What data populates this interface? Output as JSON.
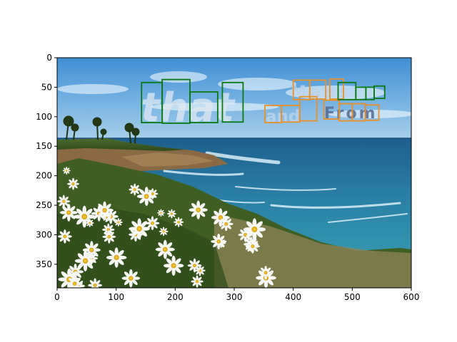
{
  "figure": {
    "x_axis": {
      "min": 0,
      "max": 600,
      "ticks": [
        0,
        100,
        200,
        300,
        400,
        500,
        600
      ]
    },
    "y_axis": {
      "min": 0,
      "max": 390,
      "inverted": true,
      "ticks": [
        0,
        50,
        100,
        150,
        200,
        250,
        300,
        350
      ]
    },
    "image": {
      "scene": "coastal photo: white daisies on a cliff, rocky headland, blue ocean, sky with clouds",
      "overlay_words": [
        "that",
        "and",
        "Mass",
        "From"
      ]
    },
    "boxes": [
      {
        "word": "that",
        "letter": "t",
        "color": "#0a7a10",
        "x0": 143,
        "y0": 42,
        "x1": 178,
        "y1": 110
      },
      {
        "word": "that",
        "letter": "h",
        "color": "#0a7a10",
        "x0": 178,
        "y0": 37,
        "x1": 225,
        "y1": 111
      },
      {
        "word": "that",
        "letter": "a",
        "color": "#0a7a10",
        "x0": 225,
        "y0": 58,
        "x1": 272,
        "y1": 110
      },
      {
        "word": "that",
        "letter": "t",
        "color": "#0a7a10",
        "x0": 280,
        "y0": 42,
        "x1": 315,
        "y1": 109
      },
      {
        "word": "and",
        "letter": "a",
        "color": "#e8902a",
        "x0": 352,
        "y0": 81,
        "x1": 380,
        "y1": 110
      },
      {
        "word": "and",
        "letter": "n",
        "color": "#e8902a",
        "x0": 380,
        "y0": 81,
        "x1": 411,
        "y1": 109
      },
      {
        "word": "and",
        "letter": "d",
        "color": "#e8902a",
        "x0": 411,
        "y0": 66,
        "x1": 440,
        "y1": 107
      },
      {
        "word": "Mass",
        "letter": "M",
        "color": "#e8902a",
        "x0": 400,
        "y0": 38,
        "x1": 428,
        "y1": 71
      },
      {
        "word": "Mass",
        "letter": "a",
        "color": "#e8902a",
        "x0": 428,
        "y0": 38,
        "x1": 455,
        "y1": 70
      },
      {
        "word": "Mass",
        "letter": "s",
        "color": "#e8902a",
        "x0": 462,
        "y0": 36,
        "x1": 485,
        "y1": 70
      },
      {
        "word": "From",
        "letter": "F",
        "color": "#e8902a",
        "x0": 452,
        "y0": 72,
        "x1": 478,
        "y1": 104
      },
      {
        "word": "From",
        "letter": "r",
        "color": "#e8902a",
        "x0": 478,
        "y0": 78,
        "x1": 500,
        "y1": 107
      },
      {
        "word": "From",
        "letter": "o",
        "color": "#e8902a",
        "x0": 500,
        "y0": 78,
        "x1": 522,
        "y1": 107
      },
      {
        "word": "From",
        "letter": "m",
        "color": "#e8902a",
        "x0": 522,
        "y0": 80,
        "x1": 545,
        "y1": 106
      },
      {
        "word": "Mass",
        "letter": "M",
        "color": "#0a7a10",
        "x0": 476,
        "y0": 42,
        "x1": 506,
        "y1": 71
      },
      {
        "word": "Mass",
        "letter": "a",
        "color": "#0a7a10",
        "x0": 506,
        "y0": 50,
        "x1": 523,
        "y1": 71
      },
      {
        "word": "Mass",
        "letter": "s",
        "color": "#0a7a10",
        "x0": 523,
        "y0": 50,
        "x1": 537,
        "y1": 71
      },
      {
        "word": "Mass",
        "letter": "s",
        "color": "#0a7a10",
        "x0": 537,
        "y0": 48,
        "x1": 555,
        "y1": 69
      }
    ]
  }
}
